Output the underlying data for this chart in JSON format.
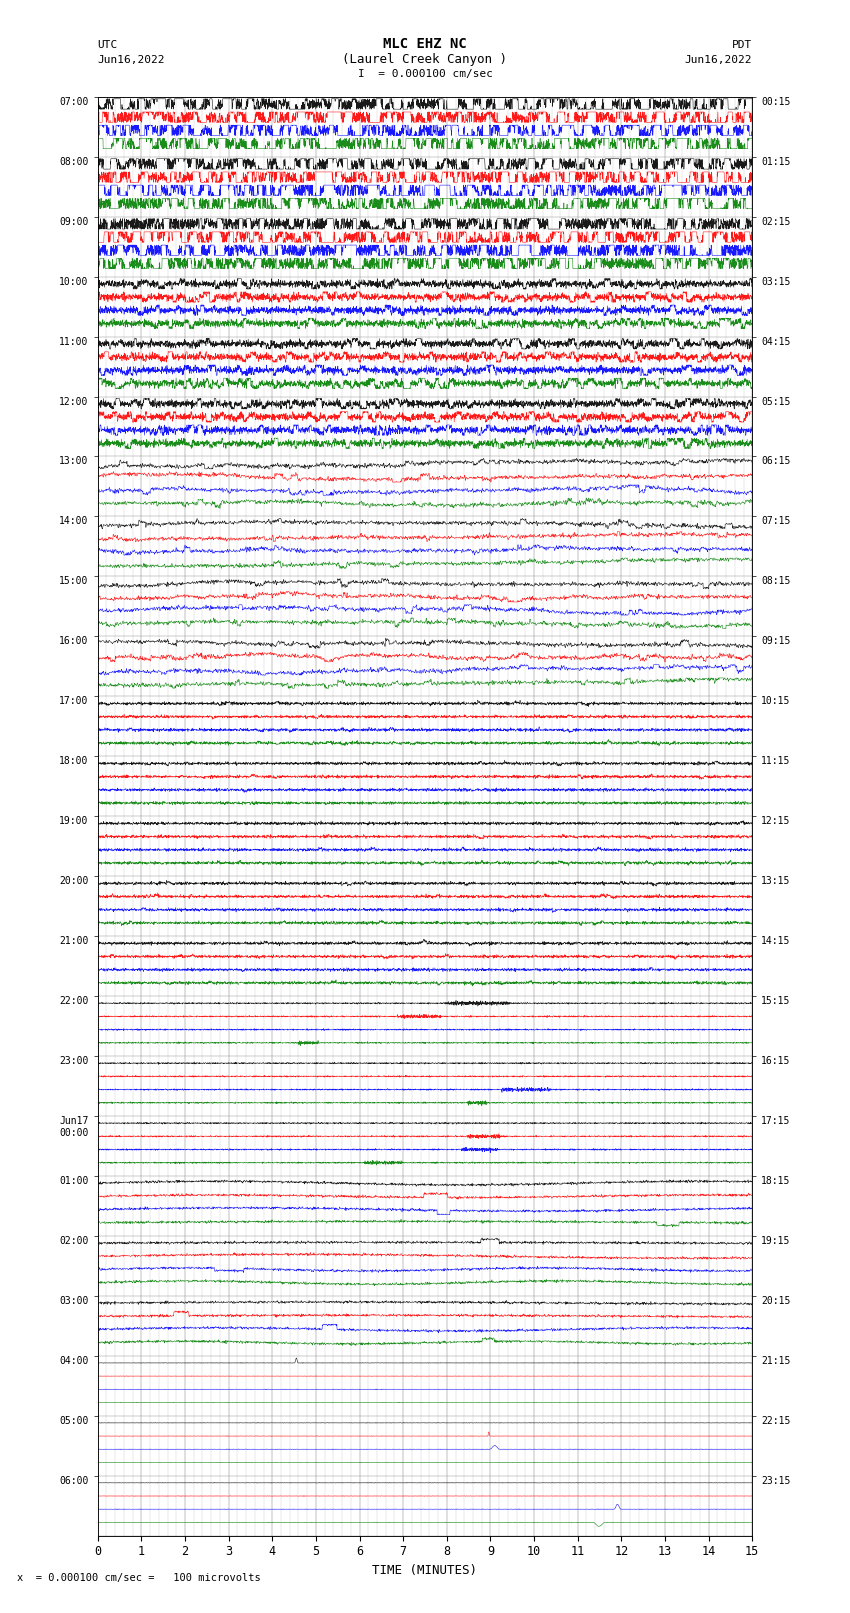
{
  "title_line1": "MLC EHZ NC",
  "title_line2": "(Laurel Creek Canyon )",
  "scale_label": "= 0.000100 cm/sec",
  "bottom_label": "= 0.000100 cm/sec =   100 microvolts",
  "utc_label": "UTC",
  "pdt_label": "PDT",
  "date_left": "Jun16,2022",
  "date_right": "Jun16,2022",
  "xlabel": "TIME (MINUTES)",
  "xlim": [
    0,
    15
  ],
  "xticks": [
    0,
    1,
    2,
    3,
    4,
    5,
    6,
    7,
    8,
    9,
    10,
    11,
    12,
    13,
    14,
    15
  ],
  "figsize": [
    8.5,
    16.13
  ],
  "dpi": 100,
  "bg_color": "#ffffff",
  "grid_color": "#999999",
  "trace_colors": [
    "black",
    "red",
    "blue",
    "green"
  ],
  "left_times": [
    "07:00",
    "08:00",
    "09:00",
    "10:00",
    "11:00",
    "12:00",
    "13:00",
    "14:00",
    "15:00",
    "16:00",
    "17:00",
    "18:00",
    "19:00",
    "20:00",
    "21:00",
    "22:00",
    "23:00",
    "Jun17\n00:00",
    "01:00",
    "02:00",
    "03:00",
    "04:00",
    "05:00",
    "06:00"
  ],
  "right_times": [
    "00:15",
    "01:15",
    "02:15",
    "03:15",
    "04:15",
    "05:15",
    "06:15",
    "07:15",
    "08:15",
    "09:15",
    "10:15",
    "11:15",
    "12:15",
    "13:15",
    "14:15",
    "15:15",
    "16:15",
    "17:15",
    "18:15",
    "19:15",
    "20:15",
    "21:15",
    "22:15",
    "23:15"
  ],
  "n_rows": 24,
  "n_traces_per_row": 4,
  "seed": 42
}
